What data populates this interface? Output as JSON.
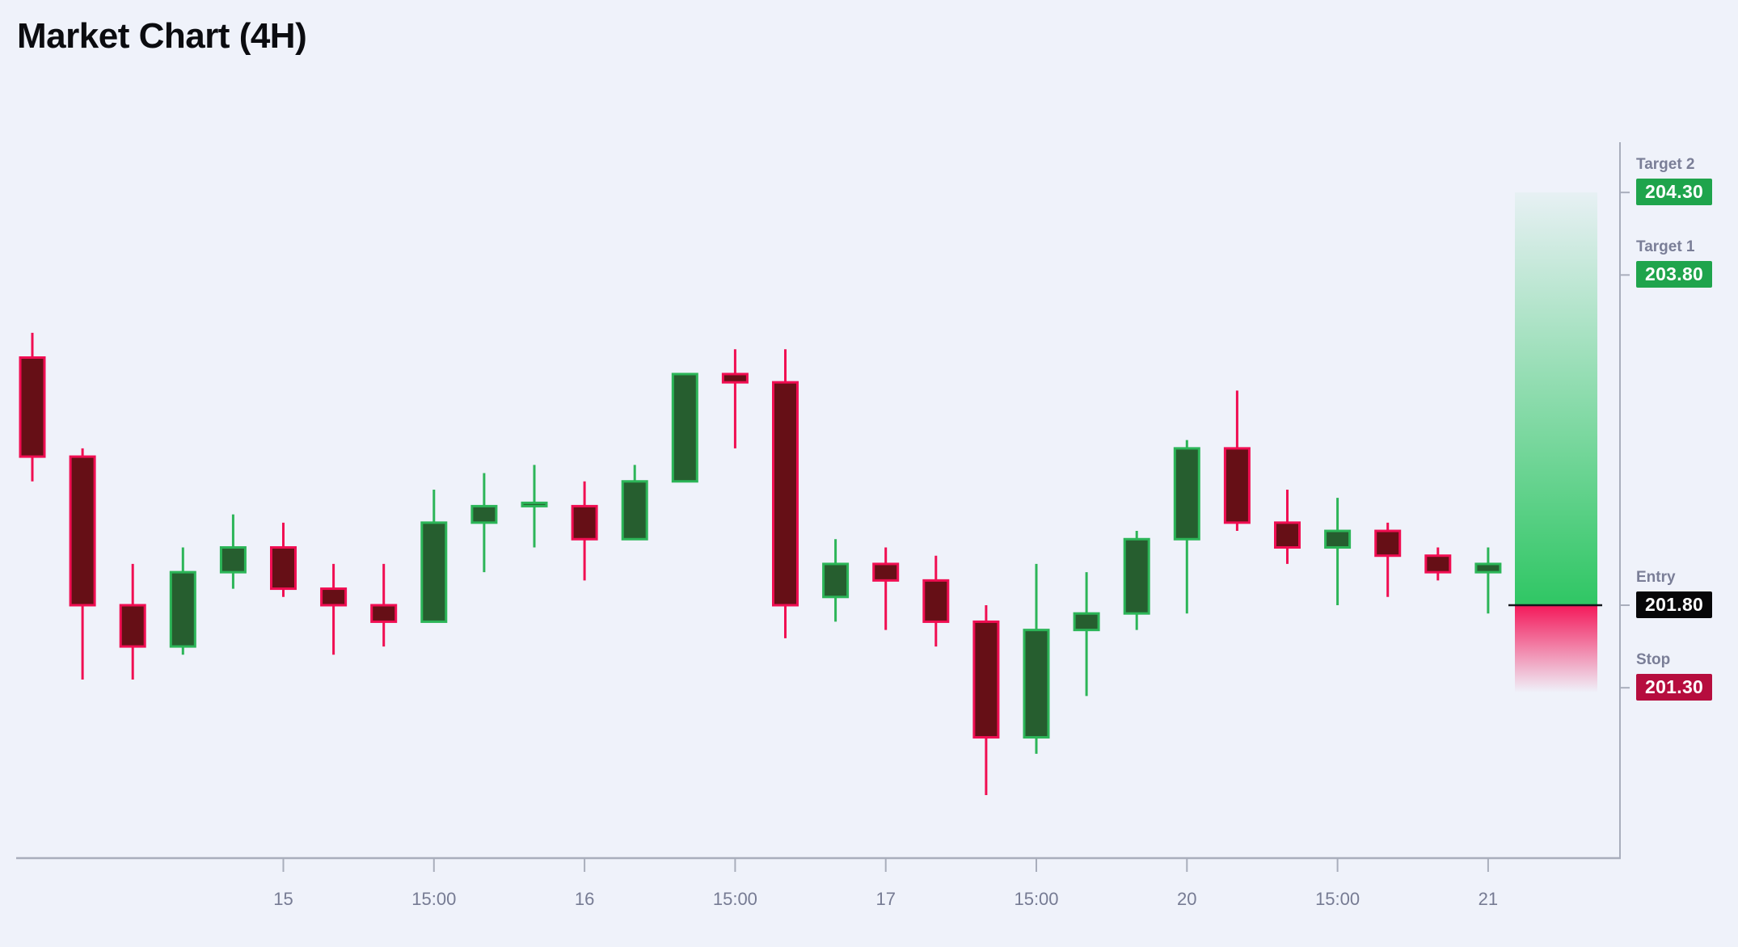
{
  "title": "Market Chart (4H)",
  "chart_data": {
    "type": "candlestick",
    "title": "Market Chart (4H)",
    "timeframe": "4H",
    "x_axis": {
      "tick_labels": [
        "15",
        "15:00",
        "16",
        "15:00",
        "17",
        "15:00",
        "20",
        "15:00",
        "21"
      ],
      "tick_candle_indices": [
        5,
        8,
        11,
        14,
        17,
        20,
        23,
        26,
        29
      ]
    },
    "y_axis": {
      "side": "right",
      "marked_prices": [
        204.3,
        203.8,
        201.8,
        201.3
      ]
    },
    "candles": [
      {
        "o": 203.3,
        "h": 203.45,
        "l": 202.55,
        "c": 202.7
      },
      {
        "o": 202.7,
        "h": 202.75,
        "l": 201.35,
        "c": 201.8
      },
      {
        "o": 201.8,
        "h": 202.05,
        "l": 201.35,
        "c": 201.55
      },
      {
        "o": 201.55,
        "h": 202.15,
        "l": 201.5,
        "c": 202.0
      },
      {
        "o": 202.0,
        "h": 202.35,
        "l": 201.9,
        "c": 202.15
      },
      {
        "o": 202.15,
        "h": 202.3,
        "l": 201.85,
        "c": 201.9
      },
      {
        "o": 201.9,
        "h": 202.05,
        "l": 201.5,
        "c": 201.8
      },
      {
        "o": 201.8,
        "h": 202.05,
        "l": 201.55,
        "c": 201.7
      },
      {
        "o": 201.7,
        "h": 202.5,
        "l": 201.7,
        "c": 202.3
      },
      {
        "o": 202.3,
        "h": 202.6,
        "l": 202.0,
        "c": 202.4
      },
      {
        "o": 202.4,
        "h": 202.65,
        "l": 202.15,
        "c": 202.42
      },
      {
        "o": 202.4,
        "h": 202.55,
        "l": 201.95,
        "c": 202.2
      },
      {
        "o": 202.2,
        "h": 202.65,
        "l": 202.2,
        "c": 202.55
      },
      {
        "o": 202.55,
        "h": 203.2,
        "l": 202.55,
        "c": 203.2
      },
      {
        "o": 203.2,
        "h": 203.35,
        "l": 202.75,
        "c": 203.15
      },
      {
        "o": 203.15,
        "h": 203.35,
        "l": 201.6,
        "c": 201.8
      },
      {
        "o": 201.85,
        "h": 202.2,
        "l": 201.7,
        "c": 202.05
      },
      {
        "o": 202.05,
        "h": 202.15,
        "l": 201.65,
        "c": 201.95
      },
      {
        "o": 201.95,
        "h": 202.1,
        "l": 201.55,
        "c": 201.7
      },
      {
        "o": 201.7,
        "h": 201.8,
        "l": 200.65,
        "c": 201.0
      },
      {
        "o": 201.0,
        "h": 202.05,
        "l": 200.9,
        "c": 201.65
      },
      {
        "o": 201.65,
        "h": 202.0,
        "l": 201.25,
        "c": 201.75
      },
      {
        "o": 201.75,
        "h": 202.25,
        "l": 201.65,
        "c": 202.2
      },
      {
        "o": 202.2,
        "h": 202.8,
        "l": 201.75,
        "c": 202.75
      },
      {
        "o": 202.75,
        "h": 203.1,
        "l": 202.25,
        "c": 202.3
      },
      {
        "o": 202.3,
        "h": 202.5,
        "l": 202.05,
        "c": 202.15
      },
      {
        "o": 202.15,
        "h": 202.45,
        "l": 201.8,
        "c": 202.25
      },
      {
        "o": 202.25,
        "h": 202.3,
        "l": 201.85,
        "c": 202.1
      },
      {
        "o": 202.1,
        "h": 202.15,
        "l": 201.95,
        "c": 202.0
      },
      {
        "o": 202.0,
        "h": 202.15,
        "l": 201.75,
        "c": 202.05
      }
    ],
    "levels": [
      {
        "id": "target2",
        "label": "Target 2",
        "value": "204.30",
        "price": 204.3,
        "kind": "target"
      },
      {
        "id": "target1",
        "label": "Target 1",
        "value": "203.80",
        "price": 203.8,
        "kind": "target"
      },
      {
        "id": "entry",
        "label": "Entry",
        "value": "201.80",
        "price": 201.8,
        "kind": "entry"
      },
      {
        "id": "stop",
        "label": "Stop",
        "value": "201.30",
        "price": 201.3,
        "kind": "stop"
      }
    ],
    "zones": [
      {
        "id": "profit-zone",
        "from_price": 204.3,
        "to_price": 201.8,
        "color": "#25c45c",
        "fade": "top"
      },
      {
        "id": "loss-zone",
        "from_price": 201.8,
        "to_price": 201.3,
        "color": "#f40e52",
        "fade": "bottom"
      }
    ],
    "colors": {
      "background": "#eff2fa",
      "bull_fill": "#265e2f",
      "bull_stroke": "#2cb558",
      "bear_fill": "#660f16",
      "bear_stroke": "#f00e52",
      "target_badge": "#1fa44c",
      "entry_badge": "#070708",
      "stop_badge": "#b60d3e",
      "axis": "#a9aebc",
      "tick_label": "#767b93",
      "level_label": "#7a7e97",
      "entry_line": "#15181d"
    }
  }
}
